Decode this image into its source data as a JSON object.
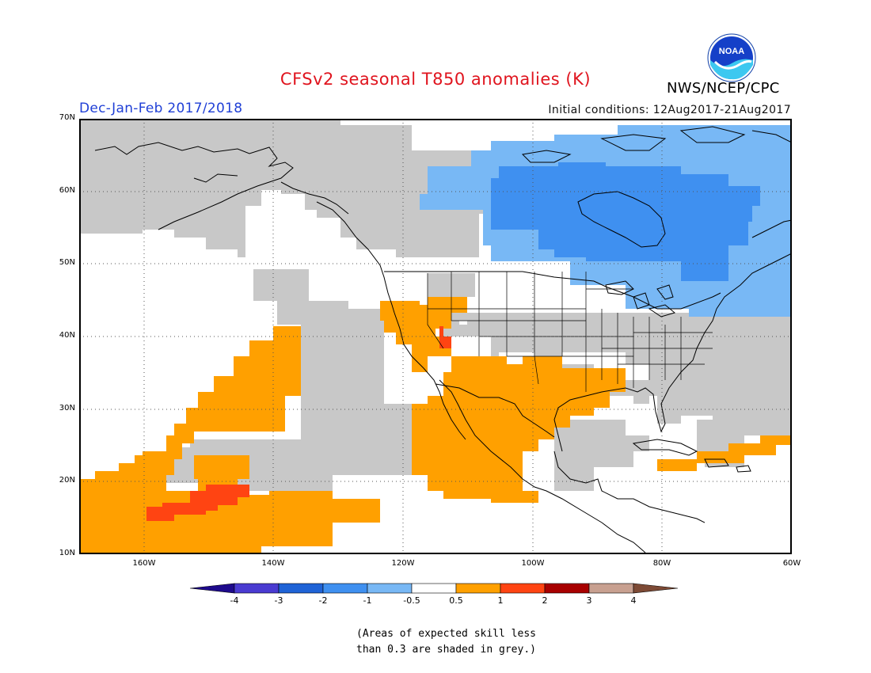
{
  "title": "CFSv2 seasonal T850 anomalies (K)",
  "agency": "NWS/NCEP/CPC",
  "logo_text": "NOAA",
  "season": "Dec-Jan-Feb 2017/2018",
  "initial_conditions": "Initial conditions: 12Aug2017-21Aug2017",
  "lat_labels": [
    "70N",
    "60N",
    "50N",
    "40N",
    "30N",
    "20N",
    "10N"
  ],
  "lon_labels": [
    "160W",
    "140W",
    "120W",
    "100W",
    "80W",
    "60W"
  ],
  "colorbar": {
    "labels": [
      "-4",
      "-3",
      "-2",
      "-1",
      "-0.5",
      "0.5",
      "1",
      "2",
      "3",
      "4"
    ],
    "colors": [
      "#1e0a8c",
      "#4a3bd1",
      "#1f63d6",
      "#3f90f0",
      "#78b8f5",
      "#ffffff",
      "#ffa000",
      "#ff4412",
      "#a80000",
      "#c8a090",
      "#7d4a35"
    ]
  },
  "shading_colors": {
    "grey": "#c8c8c8",
    "light_blue": "#78b8f5",
    "blue": "#3f90f0",
    "orange": "#ffa000",
    "red": "#ff4412"
  },
  "note": [
    "(Areas of expected skill less",
    "than 0.3 are shaded in grey.)"
  ]
}
